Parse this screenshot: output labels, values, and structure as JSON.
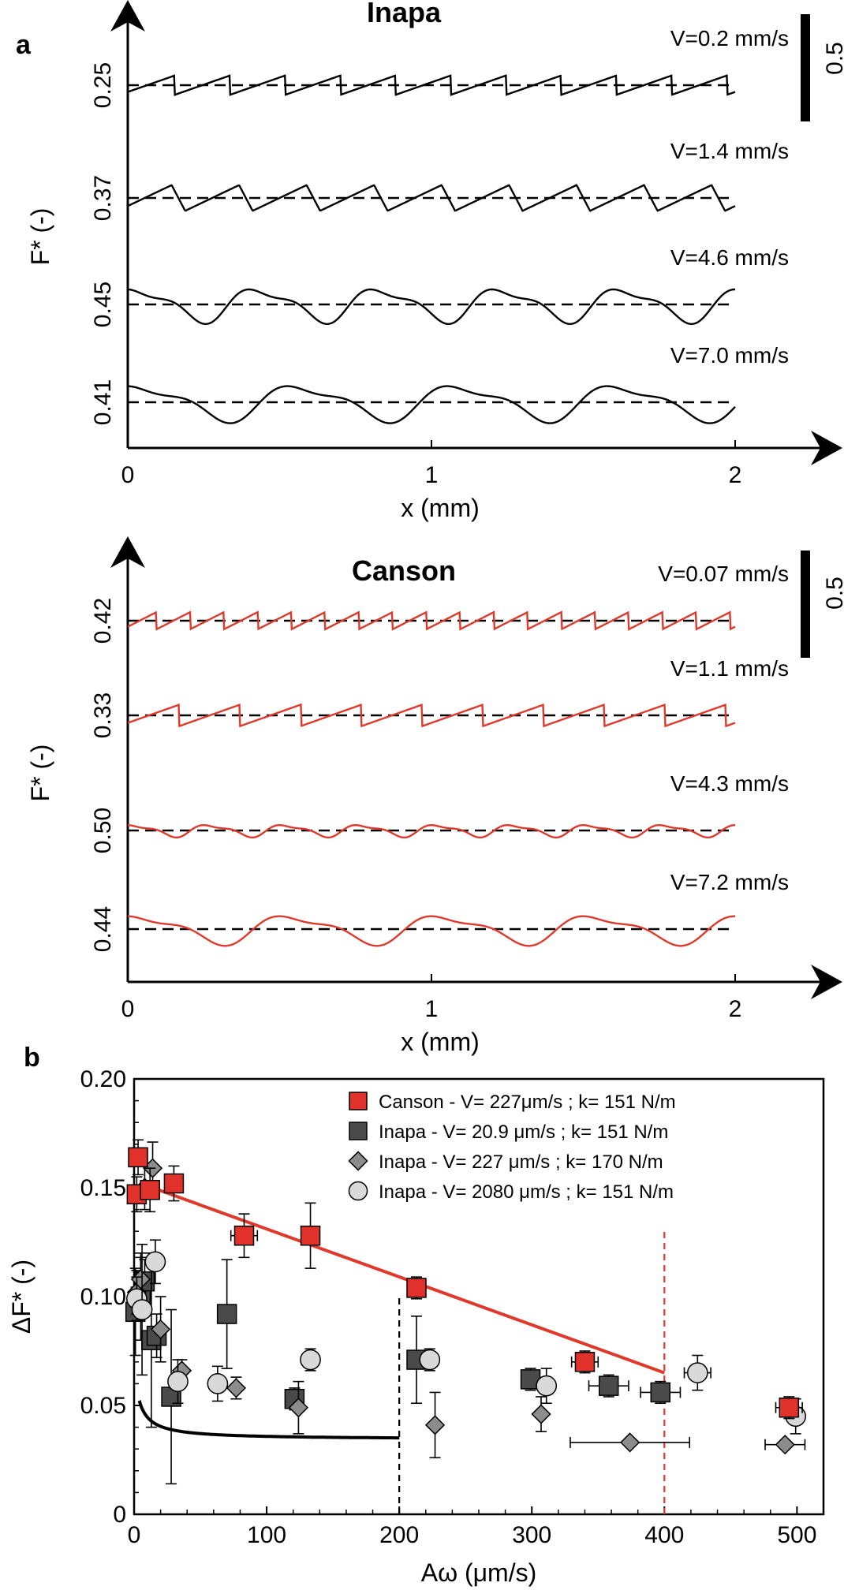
{
  "figure": {
    "panel_a_label": "a",
    "panel_b_label": "b"
  },
  "colors": {
    "canson": "#e0392b",
    "canson_marker": "#e0322a",
    "inapa_dark": "#4a4a4a",
    "inapa_diamond": "#8c8c8c",
    "inapa_circle": "#d9d9d9",
    "black": "#000000"
  },
  "chart_data": [
    {
      "type": "line",
      "title": "Inapa",
      "xlabel": "x (mm)",
      "ylabel": "F* (-)",
      "x_ticks": [
        "0",
        "1",
        "2"
      ],
      "xlim": [
        0,
        2
      ],
      "scale_bar_label": "0.5",
      "series": [
        {
          "name": "V=0.2 mm/s",
          "mean_label": "0.25",
          "mean": 0.25,
          "pattern": "sawtooth",
          "periods": 11,
          "amplitude": 0.09
        },
        {
          "name": "V=1.4 mm/s",
          "mean_label": "0.37",
          "mean": 0.37,
          "pattern": "rounded-sawtooth",
          "periods": 9,
          "amplitude": 0.12
        },
        {
          "name": "V=4.6 mm/s",
          "mean_label": "0.45",
          "mean": 0.45,
          "pattern": "smooth",
          "periods": 5,
          "amplitude": 0.14
        },
        {
          "name": "V=7.0 mm/s",
          "mean_label": "0.41",
          "mean": 0.41,
          "pattern": "smooth",
          "periods": 3.8,
          "amplitude": 0.15
        }
      ]
    },
    {
      "type": "line",
      "title": "Canson",
      "xlabel": "x (mm)",
      "ylabel": "F* (-)",
      "x_ticks": [
        "0",
        "1",
        "2"
      ],
      "xlim": [
        0,
        2
      ],
      "scale_bar_label": "0.5",
      "series": [
        {
          "name": "V=0.07 mm/s",
          "mean_label": "0.42",
          "mean": 0.42,
          "pattern": "sawtooth",
          "periods": 18,
          "amplitude": 0.08
        },
        {
          "name": "V=1.1 mm/s",
          "mean_label": "0.33",
          "mean": 0.33,
          "pattern": "sawtooth",
          "periods": 10,
          "amplitude": 0.1
        },
        {
          "name": "V=4.3 mm/s",
          "mean_label": "0.50",
          "mean": 0.5,
          "pattern": "smooth",
          "periods": 8,
          "amplitude": 0.05
        },
        {
          "name": "V=7.2 mm/s",
          "mean_label": "0.44",
          "mean": 0.44,
          "pattern": "smooth",
          "periods": 4,
          "amplitude": 0.12
        }
      ]
    },
    {
      "type": "scatter",
      "xlabel": "Aω (μm/s)",
      "ylabel": "ΔF* (-)",
      "xlim": [
        0,
        520
      ],
      "ylim": [
        0,
        0.2
      ],
      "x_ticks": [
        0,
        100,
        200,
        300,
        400,
        500
      ],
      "y_ticks": [
        "0",
        "0.05",
        "0.10",
        "0.15",
        "0.20"
      ],
      "legend_position": "top-right",
      "series": [
        {
          "name": "Canson - V= 227μm/s ; k= 151 N/m",
          "marker": "square",
          "color": "#e0322a",
          "points": [
            {
              "x": 2,
              "y": 0.147,
              "yerr": 0.008
            },
            {
              "x": 3,
              "y": 0.164,
              "yerr": 0.008
            },
            {
              "x": 12,
              "y": 0.149,
              "yerr": 0.01
            },
            {
              "x": 30,
              "y": 0.152,
              "yerr": 0.008
            },
            {
              "x": 83,
              "y": 0.128,
              "yerr": 0.01,
              "xerr": 10
            },
            {
              "x": 133,
              "y": 0.128,
              "yerr": 0.015
            },
            {
              "x": 213,
              "y": 0.104,
              "yerr": 0.005
            },
            {
              "x": 340,
              "y": 0.07,
              "yerr": 0.005,
              "xerr": 10
            },
            {
              "x": 494,
              "y": 0.049,
              "yerr": 0.005,
              "xerr": 10
            }
          ]
        },
        {
          "name": "Inapa - V= 20.9 μm/s ; k= 151 N/m",
          "marker": "square",
          "color": "#4a4a4a",
          "points": [
            {
              "x": 1,
              "y": 0.093,
              "yerr": 0.02
            },
            {
              "x": 5,
              "y": 0.1,
              "yerr": 0.02
            },
            {
              "x": 8,
              "y": 0.107,
              "yerr": 0.01
            },
            {
              "x": 13,
              "y": 0.08,
              "yerr": 0.04
            },
            {
              "x": 17,
              "y": 0.082,
              "yerr": 0.01
            },
            {
              "x": 28,
              "y": 0.054,
              "yerr": 0.04
            },
            {
              "x": 70,
              "y": 0.092,
              "yerr": 0.025
            },
            {
              "x": 121,
              "y": 0.053,
              "yerr": 0.005
            },
            {
              "x": 213,
              "y": 0.071,
              "yerr": 0.02
            },
            {
              "x": 299,
              "y": 0.062,
              "yerr": 0.005
            },
            {
              "x": 358,
              "y": 0.059,
              "yerr": 0.005,
              "xerr": 15
            },
            {
              "x": 397,
              "y": 0.056,
              "yerr": 0.005,
              "xerr": 15
            }
          ]
        },
        {
          "name": "Inapa - V= 227 μm/s ; k= 170 N/m",
          "marker": "diamond",
          "color": "#8c8c8c",
          "points": [
            {
              "x": 2,
              "y": 0.102,
              "yerr": 0.01
            },
            {
              "x": 5,
              "y": 0.108,
              "yerr": 0.01
            },
            {
              "x": 8,
              "y": 0.15,
              "yerr": 0.01
            },
            {
              "x": 14,
              "y": 0.159,
              "yerr": 0.012
            },
            {
              "x": 20,
              "y": 0.085,
              "yerr": 0.015
            },
            {
              "x": 36,
              "y": 0.066,
              "yerr": 0.005
            },
            {
              "x": 77,
              "y": 0.058,
              "yerr": 0.005
            },
            {
              "x": 124,
              "y": 0.049,
              "yerr": 0.012
            },
            {
              "x": 227,
              "y": 0.041,
              "yerr": 0.015
            },
            {
              "x": 307,
              "y": 0.046,
              "yerr": 0.008
            },
            {
              "x": 374,
              "y": 0.033,
              "yerr": 0,
              "xerr": 45
            },
            {
              "x": 491,
              "y": 0.032,
              "yerr": 0,
              "xerr": 15
            }
          ]
        },
        {
          "name": "Inapa - V= 2080 μm/s ; k= 151 N/m",
          "marker": "circle",
          "color": "#d9d9d9",
          "points": [
            {
              "x": 2,
              "y": 0.099,
              "yerr": 0.01
            },
            {
              "x": 6,
              "y": 0.094,
              "yerr": 0.03
            },
            {
              "x": 16,
              "y": 0.116,
              "yerr": 0.01
            },
            {
              "x": 33,
              "y": 0.061,
              "yerr": 0.01
            },
            {
              "x": 63,
              "y": 0.06,
              "yerr": 0.008
            },
            {
              "x": 133,
              "y": 0.071,
              "yerr": 0.005
            },
            {
              "x": 223,
              "y": 0.071,
              "yerr": 0.005
            },
            {
              "x": 311,
              "y": 0.059,
              "yerr": 0.008
            },
            {
              "x": 425,
              "y": 0.065,
              "yerr": 0.008,
              "xerr": 10
            },
            {
              "x": 499,
              "y": 0.045,
              "yerr": 0.008
            }
          ]
        }
      ],
      "fits": [
        {
          "type": "linear",
          "color": "#e0392b",
          "x": [
            5,
            400
          ],
          "y": [
            0.152,
            0.065
          ]
        },
        {
          "type": "hyperbolic",
          "color": "#000000",
          "x_range": [
            4,
            200
          ],
          "a": 0.0145,
          "b": 4.2,
          "c": 0.0344
        }
      ],
      "reference_lines": [
        {
          "x": 200,
          "style": "dashed",
          "color": "#000000"
        },
        {
          "x": 400,
          "style": "dashed",
          "color": "#e0392b"
        }
      ]
    }
  ]
}
